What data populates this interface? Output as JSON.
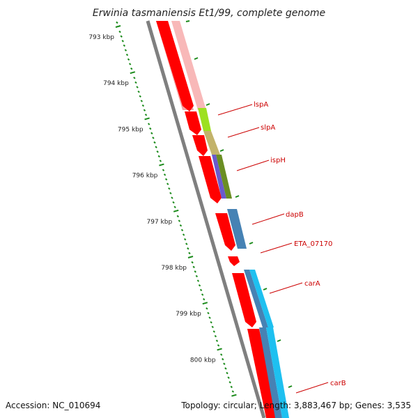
{
  "title": "Erwinia tasmaniensis Et1/99, complete genome",
  "accession": "Accession: NC_010694",
  "topology": "Topology: circular; Length: 3,883,467 bp; Genes: 3,535",
  "scale": {
    "start_kbp": 792.6,
    "end_kbp": 801.0,
    "tick_labels": [
      "793 kbp",
      "794 kbp",
      "795 kbp",
      "796 kbp",
      "797 kbp",
      "798 kbp",
      "799 kbp",
      "800 kbp"
    ]
  },
  "colors": {
    "cds": "#ff0000",
    "backbone": "#7f7f7f",
    "scale_ticks": "#1a8a1a",
    "label": "#cc0000",
    "lime": "#9de020",
    "khaki": "#c3b36b",
    "olive": "#6b8e23",
    "purple": "#6a5acd",
    "steel": "#4682b4",
    "cyan": "#1ec0f0",
    "pink": "#f08080"
  },
  "genes": [
    {
      "name": "lspA",
      "start_kbp": 794.55,
      "end_kbp": 794.95
    },
    {
      "name": "slpA",
      "start_kbp": 795.0,
      "end_kbp": 795.45
    },
    {
      "name": "ispH",
      "start_kbp": 795.55,
      "end_kbp": 796.55
    },
    {
      "name": "dapB",
      "start_kbp": 796.8,
      "end_kbp": 797.7
    },
    {
      "name": "ETA_07170",
      "start_kbp": 797.75,
      "end_kbp": 797.95
    },
    {
      "name": "carA",
      "start_kbp": 798.05,
      "end_kbp": 799.2
    },
    {
      "name": "carB",
      "start_kbp": 799.25,
      "end_kbp": 801.0
    }
  ]
}
